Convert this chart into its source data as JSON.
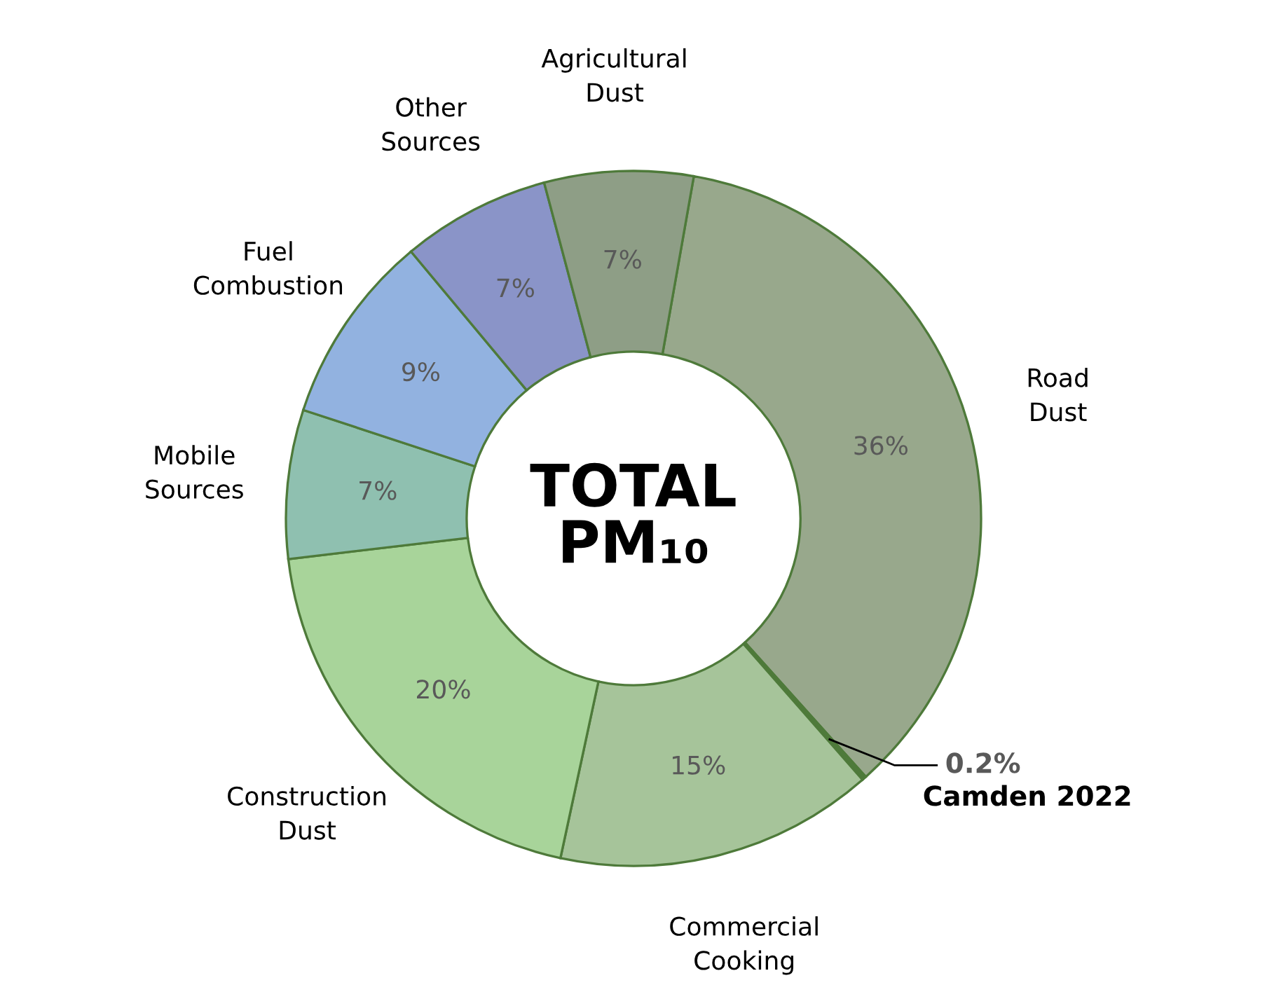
{
  "chart_data": {
    "type": "donut",
    "title": "TOTAL\nPM₁₀",
    "categories": [
      "Road\nDust",
      "Camden 2022",
      "Commercial\nCooking",
      "Construction\nDust",
      "Mobile\nSources",
      "Fuel\nCombustion",
      "Other\nSources",
      "Agricultural\nDust"
    ],
    "values": [
      36,
      0.2,
      15,
      20,
      7,
      9,
      7,
      7
    ],
    "value_labels": [
      "36%",
      "0.2%",
      "15%",
      "20%",
      "7%",
      "9%",
      "7%",
      "7%"
    ],
    "colors": [
      "#98a88c",
      "#4f7a3c",
      "#a6c49a",
      "#a8d49a",
      "#8fc0b0",
      "#92b2e0",
      "#8a94c8",
      "#8e9e86"
    ],
    "legend": false
  }
}
